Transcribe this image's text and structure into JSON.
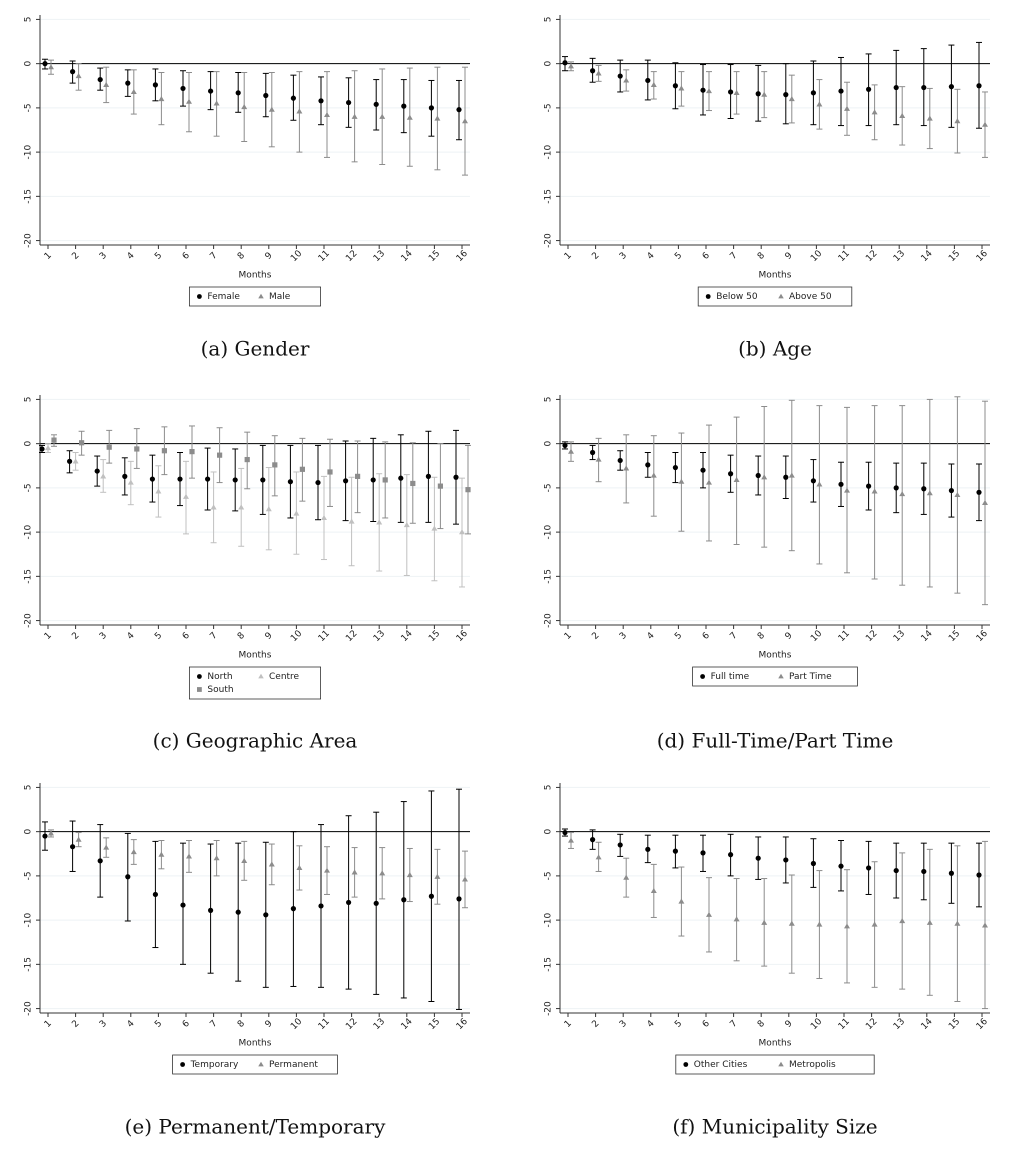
{
  "chart_data": [
    {
      "type": "errorbar",
      "caption": "(a) Gender",
      "xlabel": "Months",
      "categories": [
        "1",
        "2",
        "3",
        "4",
        "5",
        "6",
        "7",
        "8",
        "9",
        "10",
        "11",
        "12",
        "13",
        "14",
        "15",
        "16"
      ],
      "ylim": [
        -20.5,
        5.5
      ],
      "yticks": [
        5,
        0,
        -5,
        -10,
        -15,
        -20
      ],
      "hline": 0,
      "grid": true,
      "legend_columns": 2,
      "series": [
        {
          "name": "Female",
          "color": "#000000",
          "marker": "circle",
          "values": [
            0,
            -0.9,
            -1.8,
            -2.2,
            -2.4,
            -2.8,
            -3.1,
            -3.3,
            -3.6,
            -3.9,
            -4.2,
            -4.4,
            -4.6,
            -4.8,
            -5.0,
            -5.2
          ],
          "low": [
            -0.6,
            -2.2,
            -3.0,
            -3.7,
            -4.2,
            -4.8,
            -5.2,
            -5.5,
            -6.0,
            -6.4,
            -6.9,
            -7.2,
            -7.5,
            -7.8,
            -8.2,
            -8.6
          ],
          "high": [
            0.5,
            0.3,
            -0.5,
            -0.7,
            -0.6,
            -0.8,
            -0.9,
            -1.0,
            -1.1,
            -1.3,
            -1.5,
            -1.6,
            -1.8,
            -1.8,
            -1.9,
            -1.9
          ]
        },
        {
          "name": "Male",
          "color": "#8c8c8c",
          "marker": "triangle",
          "values": [
            -0.4,
            -1.4,
            -2.4,
            -3.2,
            -4.0,
            -4.3,
            -4.5,
            -4.9,
            -5.2,
            -5.4,
            -5.8,
            -6.0,
            -6.0,
            -6.1,
            -6.2,
            -6.5
          ],
          "low": [
            -1.2,
            -3.0,
            -4.4,
            -5.7,
            -6.9,
            -7.7,
            -8.2,
            -8.8,
            -9.4,
            -10.0,
            -10.6,
            -11.1,
            -11.4,
            -11.6,
            -12.0,
            -12.6
          ],
          "high": [
            0.4,
            0.0,
            -0.4,
            -0.7,
            -1.0,
            -1.0,
            -0.9,
            -1.0,
            -1.0,
            -0.9,
            -0.9,
            -0.8,
            -0.6,
            -0.5,
            -0.4,
            -0.4
          ]
        }
      ]
    },
    {
      "type": "errorbar",
      "caption": "(b) Age",
      "xlabel": "Months",
      "categories": [
        "1",
        "2",
        "3",
        "4",
        "5",
        "6",
        "7",
        "8",
        "9",
        "10",
        "11",
        "12",
        "13",
        "14",
        "15",
        "16"
      ],
      "ylim": [
        -20.5,
        5.5
      ],
      "yticks": [
        5,
        0,
        -5,
        -10,
        -15,
        -20
      ],
      "hline": 0,
      "grid": true,
      "legend_columns": 2,
      "series": [
        {
          "name": "Below 50",
          "color": "#000000",
          "marker": "circle",
          "values": [
            0.1,
            -0.8,
            -1.4,
            -1.9,
            -2.5,
            -3.0,
            -3.2,
            -3.4,
            -3.5,
            -3.3,
            -3.1,
            -2.9,
            -2.7,
            -2.7,
            -2.6,
            -2.5
          ],
          "low": [
            -0.8,
            -2.1,
            -3.2,
            -4.1,
            -5.1,
            -5.8,
            -6.2,
            -6.5,
            -6.8,
            -6.9,
            -7.0,
            -7.0,
            -6.9,
            -7.0,
            -7.2,
            -7.3
          ],
          "high": [
            0.8,
            0.6,
            0.4,
            0.4,
            0.1,
            -0.1,
            -0.1,
            -0.2,
            0.0,
            0.3,
            0.7,
            1.1,
            1.5,
            1.7,
            2.1,
            2.4
          ]
        },
        {
          "name": "Above 50",
          "color": "#8c8c8c",
          "marker": "triangle",
          "values": [
            -0.3,
            -1.1,
            -1.9,
            -2.4,
            -2.8,
            -3.1,
            -3.3,
            -3.5,
            -4.0,
            -4.6,
            -5.1,
            -5.5,
            -5.9,
            -6.2,
            -6.5,
            -6.9
          ],
          "low": [
            -0.8,
            -2.0,
            -3.1,
            -4.0,
            -4.8,
            -5.3,
            -5.7,
            -6.1,
            -6.7,
            -7.4,
            -8.1,
            -8.6,
            -9.2,
            -9.6,
            -10.1,
            -10.6
          ],
          "high": [
            0.2,
            -0.2,
            -0.7,
            -0.9,
            -0.9,
            -0.9,
            -0.9,
            -0.9,
            -1.3,
            -1.8,
            -2.1,
            -2.4,
            -2.6,
            -2.8,
            -2.9,
            -3.2
          ]
        }
      ]
    },
    {
      "type": "errorbar",
      "caption": "(c) Geographic Area",
      "xlabel": "Months",
      "categories": [
        "1",
        "2",
        "3",
        "4",
        "5",
        "6",
        "7",
        "8",
        "9",
        "10",
        "11",
        "12",
        "13",
        "14",
        "15",
        "16"
      ],
      "ylim": [
        -20.5,
        5.5
      ],
      "yticks": [
        5,
        0,
        -5,
        -10,
        -15,
        -20
      ],
      "hline": 0,
      "grid": true,
      "legend_columns": 2,
      "series": [
        {
          "name": "North",
          "color": "#000000",
          "marker": "circle",
          "values": [
            -0.6,
            -2.0,
            -3.1,
            -3.7,
            -4.0,
            -4.0,
            -4.0,
            -4.1,
            -4.1,
            -4.3,
            -4.4,
            -4.2,
            -4.1,
            -3.9,
            -3.7,
            -3.8
          ],
          "low": [
            -1.0,
            -3.3,
            -4.8,
            -5.8,
            -6.6,
            -7.0,
            -7.5,
            -7.6,
            -8.0,
            -8.4,
            -8.6,
            -8.7,
            -8.8,
            -8.9,
            -8.9,
            -9.1
          ],
          "high": [
            -0.2,
            -0.8,
            -1.4,
            -1.6,
            -1.3,
            -1.0,
            -0.5,
            -0.6,
            -0.2,
            -0.2,
            -0.2,
            0.3,
            0.6,
            1.0,
            1.4,
            1.5
          ]
        },
        {
          "name": "Centre",
          "color": "#c0c0c0",
          "marker": "triangle",
          "values": [
            -0.5,
            -2.0,
            -3.7,
            -4.4,
            -5.4,
            -6.0,
            -7.2,
            -7.2,
            -7.4,
            -7.9,
            -8.4,
            -8.8,
            -8.9,
            -9.2,
            -9.6,
            -10.0
          ],
          "low": [
            -1.0,
            -3.0,
            -5.5,
            -6.9,
            -8.3,
            -10.2,
            -11.2,
            -11.6,
            -12.0,
            -12.5,
            -13.1,
            -13.8,
            -14.4,
            -14.9,
            -15.5,
            -16.2
          ],
          "high": [
            0.0,
            -1.0,
            -1.8,
            -2.0,
            -2.5,
            -2.0,
            -3.2,
            -2.8,
            -2.7,
            -3.2,
            -3.7,
            -3.8,
            -3.4,
            -3.5,
            -3.8,
            -3.9
          ]
        },
        {
          "name": "South",
          "color": "#8c8c8c",
          "marker": "square",
          "values": [
            0.4,
            0.1,
            -0.4,
            -0.6,
            -0.8,
            -0.9,
            -1.3,
            -1.8,
            -2.4,
            -2.9,
            -3.2,
            -3.7,
            -4.1,
            -4.5,
            -4.8,
            -5.2
          ],
          "low": [
            -0.3,
            -1.3,
            -2.2,
            -2.8,
            -3.5,
            -3.9,
            -4.4,
            -5.1,
            -5.9,
            -6.5,
            -7.1,
            -7.8,
            -8.4,
            -9.0,
            -9.6,
            -10.2
          ],
          "high": [
            1.0,
            1.4,
            1.5,
            1.7,
            1.9,
            2.0,
            1.8,
            1.3,
            0.9,
            0.6,
            0.5,
            0.3,
            0.2,
            0.1,
            0.0,
            -0.2
          ]
        }
      ]
    },
    {
      "type": "errorbar",
      "caption": "(d) Full-Time/Part Time",
      "xlabel": "Months",
      "categories": [
        "1",
        "2",
        "3",
        "4",
        "5",
        "6",
        "7",
        "8",
        "9",
        "10",
        "11",
        "12",
        "13",
        "14",
        "15",
        "16"
      ],
      "ylim": [
        -20.5,
        5.5
      ],
      "yticks": [
        5,
        0,
        -5,
        -10,
        -15,
        -20
      ],
      "hline": 0,
      "grid": true,
      "legend_columns": 2,
      "series": [
        {
          "name": "Full time",
          "color": "#000000",
          "marker": "circle",
          "values": [
            -0.2,
            -1.0,
            -1.9,
            -2.4,
            -2.7,
            -3.0,
            -3.4,
            -3.6,
            -3.8,
            -4.2,
            -4.6,
            -4.8,
            -5.0,
            -5.1,
            -5.3,
            -5.5
          ],
          "low": [
            -0.6,
            -1.8,
            -3.0,
            -3.8,
            -4.4,
            -5.0,
            -5.5,
            -5.8,
            -6.2,
            -6.6,
            -7.1,
            -7.5,
            -7.8,
            -8.0,
            -8.3,
            -8.7
          ],
          "high": [
            0.2,
            -0.2,
            -0.8,
            -1.0,
            -1.0,
            -1.0,
            -1.3,
            -1.4,
            -1.4,
            -1.8,
            -2.1,
            -2.1,
            -2.2,
            -2.2,
            -2.3,
            -2.3
          ]
        },
        {
          "name": "Part Time",
          "color": "#8c8c8c",
          "marker": "triangle",
          "values": [
            -0.9,
            -1.8,
            -2.8,
            -3.6,
            -4.3,
            -4.4,
            -4.1,
            -3.8,
            -3.6,
            -4.6,
            -5.3,
            -5.4,
            -5.7,
            -5.6,
            -5.8,
            -6.7
          ],
          "low": [
            -2.0,
            -4.3,
            -6.7,
            -8.2,
            -9.9,
            -11.0,
            -11.4,
            -11.7,
            -12.1,
            -13.6,
            -14.6,
            -15.3,
            -16.0,
            -16.2,
            -16.9,
            -18.2
          ],
          "high": [
            0.2,
            0.6,
            1.0,
            0.9,
            1.2,
            2.1,
            3.0,
            4.2,
            4.9,
            4.3,
            4.1,
            4.3,
            4.3,
            5.0,
            5.3,
            4.8
          ]
        }
      ]
    },
    {
      "type": "errorbar",
      "caption": "(e) Permanent/Temporary",
      "xlabel": "Months",
      "categories": [
        "1",
        "2",
        "3",
        "4",
        "5",
        "6",
        "7",
        "8",
        "9",
        "10",
        "11",
        "12",
        "13",
        "14",
        "15",
        "16"
      ],
      "ylim": [
        -20.5,
        5.5
      ],
      "yticks": [
        5,
        0,
        -5,
        -10,
        -15,
        -20
      ],
      "hline": 0,
      "grid": true,
      "legend_columns": 2,
      "series": [
        {
          "name": "Temporary",
          "color": "#000000",
          "marker": "circle",
          "values": [
            -0.5,
            -1.7,
            -3.3,
            -5.1,
            -7.1,
            -8.3,
            -8.9,
            -9.1,
            -9.4,
            -8.7,
            -8.4,
            -8.0,
            -8.1,
            -7.7,
            -7.3,
            -7.6
          ],
          "low": [
            -2.1,
            -4.5,
            -7.4,
            -10.1,
            -13.1,
            -15.0,
            -16.0,
            -16.9,
            -17.6,
            -17.5,
            -17.6,
            -17.8,
            -18.4,
            -18.8,
            -19.2,
            -20.1
          ],
          "high": [
            1.1,
            1.2,
            0.8,
            -0.2,
            -1.1,
            -1.3,
            -1.4,
            -1.3,
            -1.2,
            0.0,
            0.8,
            1.8,
            2.2,
            3.4,
            4.6,
            4.8
          ]
        },
        {
          "name": "Permanent",
          "color": "#8c8c8c",
          "marker": "triangle",
          "values": [
            -0.2,
            -0.9,
            -1.8,
            -2.3,
            -2.6,
            -2.8,
            -3.0,
            -3.3,
            -3.7,
            -4.1,
            -4.4,
            -4.6,
            -4.7,
            -4.9,
            -5.1,
            -5.4
          ],
          "low": [
            -0.6,
            -1.7,
            -2.9,
            -3.7,
            -4.2,
            -4.6,
            -5.0,
            -5.5,
            -6.0,
            -6.6,
            -7.1,
            -7.4,
            -7.6,
            -7.9,
            -8.2,
            -8.6
          ],
          "high": [
            0.2,
            -0.1,
            -0.7,
            -0.9,
            -1.0,
            -1.0,
            -1.0,
            -1.1,
            -1.4,
            -1.6,
            -1.7,
            -1.8,
            -1.8,
            -1.9,
            -2.0,
            -2.2
          ]
        }
      ]
    },
    {
      "type": "errorbar",
      "caption": "(f) Municipality Size",
      "xlabel": "Months",
      "categories": [
        "1",
        "2",
        "3",
        "4",
        "5",
        "6",
        "7",
        "8",
        "9",
        "10",
        "11",
        "12",
        "13",
        "14",
        "15",
        "16"
      ],
      "ylim": [
        -20.5,
        5.5
      ],
      "yticks": [
        5,
        0,
        -5,
        -10,
        -15,
        -20
      ],
      "hline": 0,
      "grid": true,
      "legend_columns": 2,
      "series": [
        {
          "name": "Other Cities",
          "color": "#000000",
          "marker": "circle",
          "values": [
            -0.1,
            -0.9,
            -1.5,
            -2.0,
            -2.2,
            -2.4,
            -2.6,
            -3.0,
            -3.2,
            -3.6,
            -3.9,
            -4.1,
            -4.4,
            -4.5,
            -4.7,
            -4.9
          ],
          "low": [
            -0.5,
            -2.0,
            -2.8,
            -3.5,
            -4.1,
            -4.5,
            -5.0,
            -5.4,
            -5.8,
            -6.3,
            -6.7,
            -7.1,
            -7.5,
            -7.7,
            -8.1,
            -8.5
          ],
          "high": [
            0.3,
            0.2,
            -0.3,
            -0.4,
            -0.4,
            -0.4,
            -0.3,
            -0.6,
            -0.6,
            -0.8,
            -1.0,
            -1.1,
            -1.3,
            -1.3,
            -1.3,
            -1.3
          ]
        },
        {
          "name": "Metropolis",
          "color": "#8c8c8c",
          "marker": "triangle",
          "values": [
            -1.0,
            -2.9,
            -5.2,
            -6.7,
            -7.9,
            -9.4,
            -9.9,
            -10.3,
            -10.4,
            -10.5,
            -10.7,
            -10.5,
            -10.1,
            -10.3,
            -10.4,
            -10.6
          ],
          "low": [
            -1.9,
            -4.5,
            -7.4,
            -9.7,
            -11.8,
            -13.6,
            -14.6,
            -15.2,
            -16.0,
            -16.6,
            -17.1,
            -17.6,
            -17.8,
            -18.5,
            -19.2,
            -20.0
          ],
          "high": [
            -0.1,
            -1.2,
            -3.0,
            -3.7,
            -4.0,
            -5.2,
            -5.3,
            -5.3,
            -4.9,
            -4.4,
            -4.3,
            -3.4,
            -2.4,
            -2.0,
            -1.6,
            -1.1
          ]
        }
      ]
    }
  ]
}
